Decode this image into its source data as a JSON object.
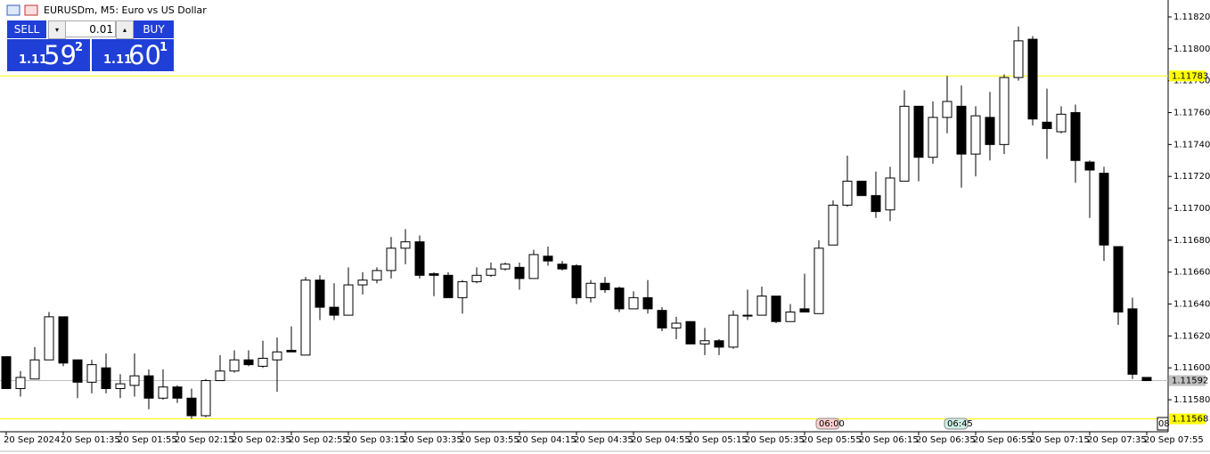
{
  "header": {
    "title": "EURUSDm, M5: Euro vs US Dollar"
  },
  "trade_panel": {
    "sell": "SELL",
    "buy": "BUY",
    "volume": "0.01",
    "bid": {
      "big": "1.11",
      "main": "59",
      "small": "2"
    },
    "ask": {
      "big": "1.11",
      "main": "60",
      "small": "1"
    }
  },
  "chart_data": {
    "type": "candlestick",
    "categories": [
      "20 Sep 2024",
      null,
      null,
      null,
      "20 Sep 01:35",
      null,
      null,
      null,
      "20 Sep 01:55",
      null,
      null,
      null,
      "20 Sep 02:15",
      null,
      null,
      null,
      "20 Sep 02:35",
      null,
      null,
      null,
      "20 Sep 02:55",
      null,
      null,
      null,
      "20 Sep 03:15",
      null,
      null,
      null,
      "20 Sep 03:35",
      null,
      null,
      null,
      "20 Sep 03:55",
      null,
      null,
      null,
      "20 Sep 04:15",
      null,
      null,
      null,
      "20 Sep 04:35",
      null,
      null,
      null,
      "20 Sep 04:55",
      null,
      null,
      null,
      "20 Sep 05:15",
      null,
      null,
      null,
      "20 Sep 05:35",
      null,
      null,
      null,
      "20 Sep 05:55",
      null,
      null,
      null,
      "20 Sep 06:15",
      null,
      null,
      null,
      "20 Sep 06:35",
      null,
      null,
      null,
      "20 Sep 06:55",
      null,
      null,
      null,
      "20 Sep 07:15",
      null,
      null,
      null,
      "20 Sep 07:35",
      null,
      null,
      null,
      "20 Sep 07:55"
    ],
    "open": [
      1.11607,
      1.11587,
      1.11593,
      1.11605,
      1.11632,
      1.11605,
      1.11591,
      1.116,
      1.11587,
      1.11589,
      1.11595,
      1.11581,
      1.11588,
      1.11581,
      1.1157,
      1.11592,
      1.11598,
      1.11605,
      1.11601,
      1.11605,
      1.11611,
      1.11608,
      1.11655,
      1.11638,
      1.11633,
      1.11652,
      1.11655,
      1.11661,
      1.11675,
      1.11679,
      1.11659,
      1.11658,
      1.11644,
      1.11654,
      1.11658,
      1.11662,
      1.11663,
      1.11656,
      1.1167,
      1.11665,
      1.11664,
      1.11644,
      1.11653,
      1.1165,
      1.11637,
      1.11644,
      1.11636,
      1.11625,
      1.11629,
      1.11615,
      1.11617,
      1.11613,
      1.11633,
      1.11633,
      1.11645,
      1.11629,
      1.11637,
      1.11634,
      1.11677,
      1.11702,
      1.11717,
      1.11708,
      1.11699,
      1.11717,
      1.11764,
      1.11732,
      1.11757,
      1.11764,
      1.11734,
      1.11757,
      1.1174,
      1.11782,
      1.11806,
      1.11754,
      1.11748,
      1.1176,
      1.11729,
      1.11722,
      1.11676,
      1.11637,
      1.11594
    ],
    "high": [
      1.11607,
      1.11598,
      1.11613,
      1.11635,
      1.11632,
      1.11605,
      1.11605,
      1.11609,
      1.11596,
      1.11609,
      1.11599,
      1.11599,
      1.11589,
      1.11587,
      1.11593,
      1.11608,
      1.11611,
      1.11611,
      1.11617,
      1.11619,
      1.11626,
      1.11657,
      1.11658,
      1.11653,
      1.11663,
      1.1166,
      1.11663,
      1.11682,
      1.11687,
      1.11683,
      1.1166,
      1.1166,
      1.11655,
      1.11663,
      1.11666,
      1.11666,
      1.11666,
      1.11674,
      1.11676,
      1.11667,
      1.11665,
      1.11655,
      1.11657,
      1.11651,
      1.11648,
      1.11655,
      1.11638,
      1.11632,
      1.11629,
      1.11625,
      1.11618,
      1.11636,
      1.11649,
      1.11651,
      1.11645,
      1.1164,
      1.11659,
      1.1168,
      1.11705,
      1.11733,
      1.11717,
      1.11723,
      1.11726,
      1.11774,
      1.11764,
      1.11767,
      1.11783,
      1.11777,
      1.11764,
      1.11773,
      1.11784,
      1.11814,
      1.11808,
      1.11775,
      1.11764,
      1.11765,
      1.1173,
      1.11726,
      1.11676,
      1.11644,
      1.11594
    ],
    "low": [
      1.11587,
      1.11582,
      1.11593,
      1.11605,
      1.11601,
      1.11581,
      1.11584,
      1.11584,
      1.11581,
      1.11582,
      1.11574,
      1.1158,
      1.11578,
      1.11568,
      1.11569,
      1.11592,
      1.11597,
      1.11601,
      1.116,
      1.11585,
      1.1161,
      1.11608,
      1.1163,
      1.1163,
      1.11633,
      1.11646,
      1.11653,
      1.11656,
      1.11665,
      1.11656,
      1.11645,
      1.11644,
      1.11634,
      1.11653,
      1.11657,
      1.11661,
      1.11649,
      1.11656,
      1.11664,
      1.11661,
      1.1164,
      1.11641,
      1.11647,
      1.11635,
      1.11637,
      1.11634,
      1.11623,
      1.11618,
      1.11615,
      1.11608,
      1.11608,
      1.11612,
      1.1163,
      1.11633,
      1.11628,
      1.11629,
      1.11635,
      1.11634,
      1.11677,
      1.11701,
      1.11708,
      1.11694,
      1.11692,
      1.11717,
      1.11717,
      1.11728,
      1.11747,
      1.11713,
      1.1172,
      1.1173,
      1.11734,
      1.1178,
      1.11752,
      1.11731,
      1.11747,
      1.11716,
      1.11694,
      1.11667,
      1.11627,
      1.11593,
      1.11592
    ],
    "close": [
      1.11587,
      1.11594,
      1.11605,
      1.11632,
      1.11603,
      1.11591,
      1.11602,
      1.11587,
      1.1159,
      1.11595,
      1.11581,
      1.11588,
      1.11581,
      1.1157,
      1.11592,
      1.11598,
      1.11605,
      1.11602,
      1.11606,
      1.1161,
      1.1161,
      1.11655,
      1.11638,
      1.11633,
      1.11652,
      1.11655,
      1.11661,
      1.11675,
      1.11679,
      1.11658,
      1.11658,
      1.11644,
      1.11654,
      1.11658,
      1.11662,
      1.11665,
      1.11656,
      1.11671,
      1.11667,
      1.11662,
      1.11644,
      1.11653,
      1.11649,
      1.11637,
      1.11644,
      1.11637,
      1.11625,
      1.11628,
      1.11615,
      1.11617,
      1.11613,
      1.11633,
      1.11633,
      1.11645,
      1.11629,
      1.11635,
      1.11635,
      1.11675,
      1.11702,
      1.11717,
      1.11708,
      1.11698,
      1.11719,
      1.11764,
      1.11732,
      1.11757,
      1.11767,
      1.11734,
      1.11758,
      1.1174,
      1.11782,
      1.11805,
      1.11756,
      1.1175,
      1.11759,
      1.1173,
      1.11724,
      1.11677,
      1.11635,
      1.11596,
      1.11592
    ],
    "up_color": "#ffffff",
    "down_color": "#000000",
    "ylim": [
      1.115605,
      1.118306
    ],
    "yticks": [
      {
        "value": 1.1158,
        "label": "1.11580"
      },
      {
        "value": 1.116,
        "label": "1.11600"
      },
      {
        "value": 1.1162,
        "label": "1.11620"
      },
      {
        "value": 1.1164,
        "label": "1.11640"
      },
      {
        "value": 1.1166,
        "label": "1.11660"
      },
      {
        "value": 1.1168,
        "label": "1.11680"
      },
      {
        "value": 1.117,
        "label": "1.11700"
      },
      {
        "value": 1.1172,
        "label": "1.11720"
      },
      {
        "value": 1.1174,
        "label": "1.11740"
      },
      {
        "value": 1.1176,
        "label": "1.11760"
      },
      {
        "value": 1.1178,
        "label": "1.11780"
      },
      {
        "value": 1.118,
        "label": "1.11800"
      },
      {
        "value": 1.1182,
        "label": "1.11820"
      }
    ],
    "levels": [
      {
        "value": 1.11783,
        "label": "1.11783",
        "color": "#ffff00"
      },
      {
        "value": 1.11568,
        "label": "1.11568",
        "color": "#ffff00"
      },
      {
        "value": 1.11592,
        "label": "1.11592",
        "color": "#c0c0c0"
      }
    ],
    "time_markers": [
      {
        "label": "06:00",
        "color": "#ffd0d0"
      },
      {
        "label": "06:45",
        "color": "#d0f0e8"
      }
    ],
    "x_edge_label": "08"
  }
}
